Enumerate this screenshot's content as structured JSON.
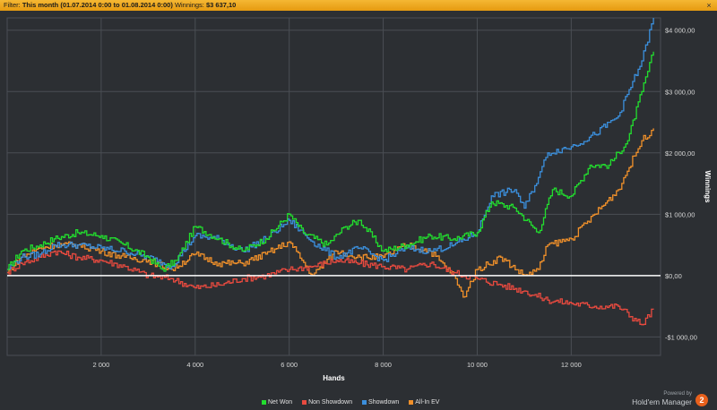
{
  "filter": {
    "label": "Filter:",
    "value": "This month (01.07.2014 0:00 to 01.08.2014 0:00)",
    "winnings_label": "Winnings:",
    "winnings_value": "$3 637,10",
    "close": "×"
  },
  "branding": {
    "powered_by": "Powered by",
    "product": "Hold'em Manager",
    "badge": "2"
  },
  "colors": {
    "background": "#2c2f33",
    "grid": "#4a4e54",
    "zero_line": "#ffffff",
    "Net Won": "#22dd2e",
    "Non Showdown": "#e84a3f",
    "Showdown": "#3b8fdc",
    "All-In EV": "#f0902a"
  },
  "chart_data": {
    "type": "line",
    "title": "",
    "xlabel": "Hands",
    "ylabel": "Winnings",
    "xlim": [
      0,
      13900
    ],
    "ylim": [
      -1300,
      4200
    ],
    "xticks": [
      2000,
      4000,
      6000,
      8000,
      10000,
      12000
    ],
    "xtick_labels": [
      "2 000",
      "4 000",
      "6 000",
      "8 000",
      "10 000",
      "12 000"
    ],
    "yticks": [
      -1000,
      0,
      1000,
      2000,
      3000,
      4000
    ],
    "ytick_labels": [
      "-$1 000,00",
      "$0,00",
      "$1 000,00",
      "$2 000,00",
      "$3 000,00",
      "$4 000,00"
    ],
    "grid": true,
    "legend_position": "bottom",
    "series": [
      {
        "name": "Net Won",
        "x": [
          0,
          300,
          700,
          1000,
          1500,
          2000,
          2500,
          3000,
          3300,
          3600,
          4000,
          4500,
          5000,
          5500,
          6000,
          6300,
          6800,
          7200,
          7500,
          8000,
          8500,
          9000,
          9500,
          10000,
          10300,
          10800,
          11300,
          11600,
          12000,
          12400,
          12800,
          13200,
          13500,
          13750
        ],
        "y": [
          100,
          400,
          500,
          600,
          700,
          650,
          500,
          300,
          100,
          250,
          800,
          600,
          400,
          600,
          1000,
          700,
          500,
          800,
          900,
          400,
          500,
          650,
          600,
          700,
          1200,
          1100,
          700,
          1400,
          1300,
          1800,
          1800,
          2200,
          3000,
          3650
        ]
      },
      {
        "name": "Non Showdown",
        "x": [
          0,
          300,
          700,
          1000,
          1500,
          2000,
          2500,
          3000,
          3500,
          4000,
          4500,
          5000,
          5500,
          6000,
          6500,
          7000,
          7500,
          8000,
          8500,
          9000,
          9500,
          10000,
          10500,
          11000,
          11500,
          12000,
          12500,
          13000,
          13500,
          13750
        ],
        "y": [
          50,
          200,
          300,
          400,
          300,
          250,
          150,
          0,
          -50,
          -200,
          -150,
          -50,
          0,
          100,
          150,
          250,
          200,
          150,
          100,
          200,
          50,
          -50,
          -150,
          -250,
          -400,
          -450,
          -500,
          -500,
          -800,
          -550
        ]
      },
      {
        "name": "Showdown",
        "x": [
          0,
          300,
          700,
          1000,
          1500,
          2000,
          2500,
          3000,
          3500,
          4000,
          4500,
          5000,
          5500,
          6000,
          6500,
          7000,
          7500,
          8000,
          8500,
          9000,
          9500,
          10000,
          10300,
          10800,
          11000,
          11300,
          11500,
          12000,
          12500,
          13000,
          13500,
          13750
        ],
        "y": [
          100,
          300,
          350,
          500,
          500,
          450,
          400,
          300,
          150,
          650,
          600,
          400,
          600,
          900,
          550,
          300,
          450,
          250,
          450,
          400,
          500,
          700,
          1300,
          1400,
          1100,
          1600,
          2000,
          2100,
          2300,
          2600,
          3500,
          4200
        ]
      },
      {
        "name": "All-In EV",
        "x": [
          0,
          300,
          700,
          1000,
          1500,
          2000,
          2500,
          3000,
          3500,
          4000,
          4500,
          5000,
          5500,
          6000,
          6500,
          7000,
          7500,
          8000,
          8500,
          9000,
          9500,
          9700,
          10000,
          10500,
          11000,
          11300,
          11500,
          12000,
          12500,
          13000,
          13500,
          13750
        ],
        "y": [
          50,
          300,
          450,
          500,
          500,
          400,
          300,
          250,
          100,
          350,
          200,
          200,
          350,
          550,
          0,
          400,
          300,
          300,
          500,
          400,
          0,
          -350,
          100,
          300,
          0,
          100,
          500,
          600,
          1000,
          1400,
          2200,
          2400
        ]
      }
    ]
  }
}
